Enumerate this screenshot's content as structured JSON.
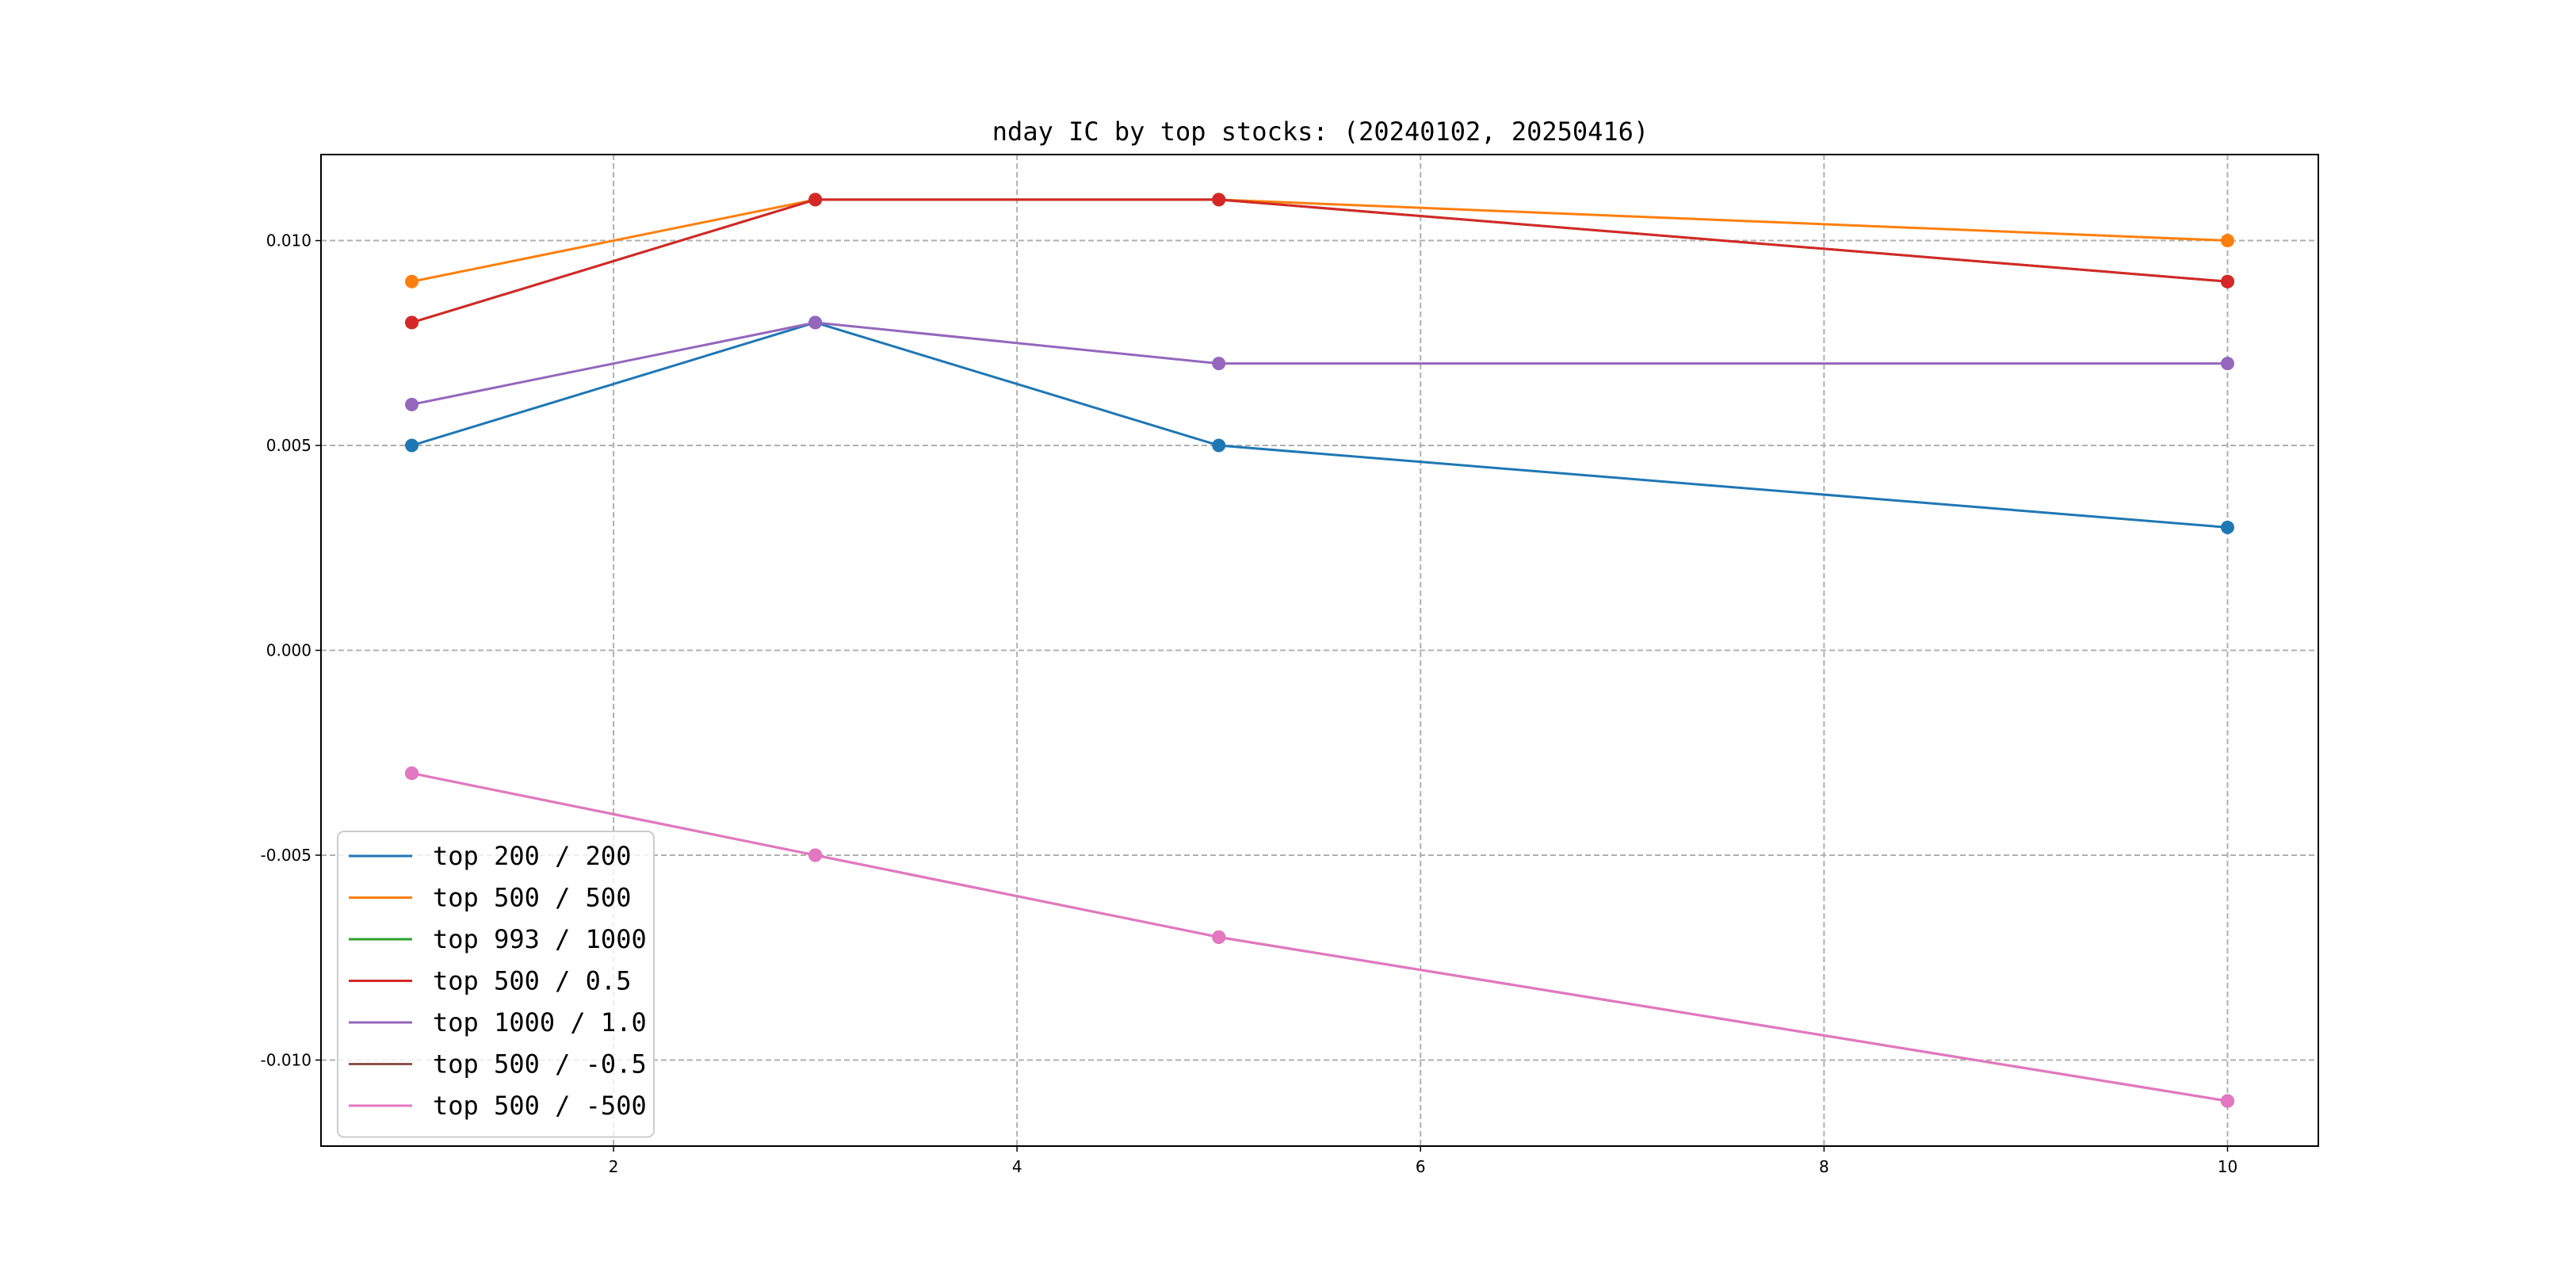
{
  "chart_data": {
    "type": "line",
    "title": "nday IC by top stocks: (20240102, 20250416)",
    "xlabel": "",
    "ylabel": "",
    "x": [
      1,
      3,
      5,
      10
    ],
    "xlim": [
      0.55,
      10.45
    ],
    "ylim": [
      -0.0121,
      0.0121
    ],
    "xticks": [
      2,
      4,
      6,
      8,
      10
    ],
    "xtick_labels": [
      "2",
      "4",
      "6",
      "8",
      "10"
    ],
    "yticks": [
      -0.01,
      -0.005,
      0.0,
      0.005,
      0.01
    ],
    "ytick_labels": [
      "-0.010",
      "-0.005",
      "0.000",
      "0.005",
      "0.010"
    ],
    "grid": true,
    "legend_position": "lower-left",
    "series": [
      {
        "name": "top 200 / 200",
        "color": "#1f77b4",
        "values": [
          0.005,
          0.008,
          0.005,
          0.003
        ]
      },
      {
        "name": "top 500 / 500",
        "color": "#ff7f0e",
        "values": [
          0.009,
          0.011,
          0.011,
          0.01
        ]
      },
      {
        "name": "top 993 / 1000",
        "color": "#2ca02c",
        "values": [
          0.008,
          0.011,
          0.011,
          0.009
        ]
      },
      {
        "name": "top 500 / 0.5",
        "color": "#d62728",
        "values": [
          0.008,
          0.011,
          0.011,
          0.009
        ]
      },
      {
        "name": "top 1000 / 1.0",
        "color": "#9467bd",
        "values": [
          0.006,
          0.008,
          0.007,
          0.007
        ]
      },
      {
        "name": "top 500 / -0.5",
        "color": "#8c564b",
        "values": [
          -0.003,
          -0.005,
          -0.007,
          -0.011
        ]
      },
      {
        "name": "top 500 / -500",
        "color": "#e377c2",
        "values": [
          -0.003,
          -0.005,
          -0.007,
          -0.011
        ]
      }
    ]
  }
}
